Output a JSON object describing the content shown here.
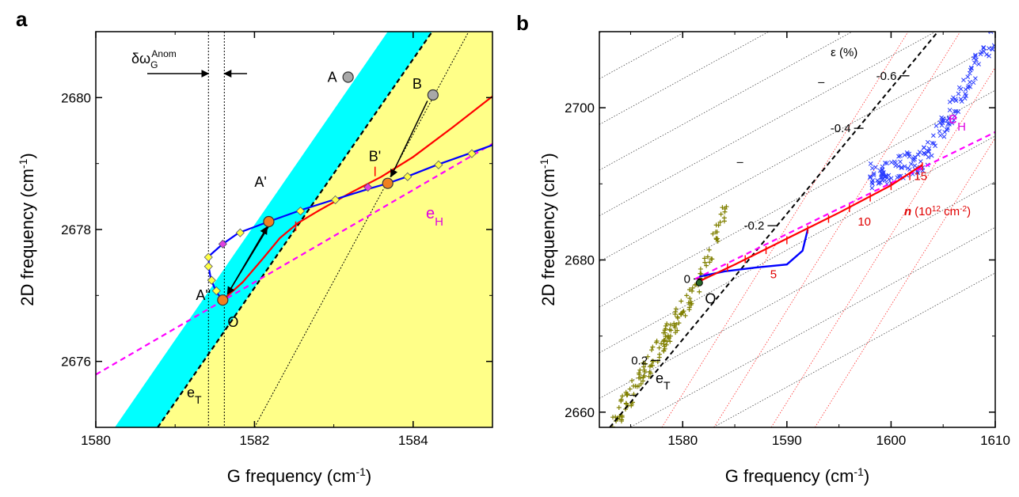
{
  "figure": {
    "panels": [
      "a",
      "b"
    ]
  },
  "chart_data": [
    {
      "panel": "a",
      "type": "line",
      "xlabel": "G frequency (cm",
      "xlabel_sup": "-1",
      "xlabel_end": ")",
      "ylabel": "2D frequency (cm",
      "ylabel_sup": "-1",
      "ylabel_end": ")",
      "xlim": [
        1580,
        1585
      ],
      "ylim": [
        2675,
        2681
      ],
      "xticks": [
        1580,
        1582,
        1584
      ],
      "yticks": [
        2676,
        2678,
        2680
      ],
      "colors": {
        "cyan": "#00ffff",
        "yellow": "#ffff88",
        "blue": "#0000ff",
        "red": "#ff0000",
        "magenta": "#ff00ff",
        "marker_yellow": "#ffff44",
        "marker_gray": "#a8a8a8",
        "marker_orange": "#f08020"
      },
      "cyan_band": {
        "left_edge": [
          [
            1580.24,
            2675
          ],
          [
            1583.68,
            2681
          ]
        ],
        "right_edge": [
          [
            1580.78,
            2675
          ],
          [
            1584.24,
            2681
          ]
        ]
      },
      "e_T_line": [
        [
          1580.78,
          2675
        ],
        [
          1584.24,
          2681
        ]
      ],
      "e_H_line": [
        [
          1580,
          2675.8
        ],
        [
          1585,
          2679.3
        ]
      ],
      "strain_line_through_B": [
        [
          1582.0,
          2675
        ],
        [
          1584.7,
          2681
        ]
      ],
      "anomaly_lines_x": [
        1581.42,
        1581.62
      ],
      "blue_curve": [
        [
          1581.6,
          2676.93
        ],
        [
          1581.52,
          2677.05
        ],
        [
          1581.45,
          2677.25
        ],
        [
          1581.42,
          2677.45
        ],
        [
          1581.43,
          2677.6
        ],
        [
          1581.6,
          2677.78
        ],
        [
          1581.8,
          2677.95
        ],
        [
          1582.18,
          2678.12
        ],
        [
          1582.6,
          2678.3
        ],
        [
          1583.05,
          2678.47
        ],
        [
          1583.45,
          2678.62
        ],
        [
          1583.68,
          2678.7
        ],
        [
          1583.92,
          2678.8
        ],
        [
          1584.3,
          2678.98
        ],
        [
          1584.7,
          2679.15
        ],
        [
          1585,
          2679.28
        ]
      ],
      "blue_markers": [
        [
          1581.42,
          2677.58
        ],
        [
          1581.42,
          2677.44
        ],
        [
          1581.46,
          2677.23
        ],
        [
          1581.52,
          2677.07
        ],
        [
          1581.82,
          2677.95
        ],
        [
          1582.58,
          2678.28
        ],
        [
          1583.02,
          2678.45
        ],
        [
          1583.93,
          2678.8
        ],
        [
          1584.32,
          2678.98
        ],
        [
          1584.74,
          2679.15
        ]
      ],
      "magenta_markers": [
        [
          1581.6,
          2677.78
        ],
        [
          1583.43,
          2678.64
        ]
      ],
      "red_curve": [
        [
          1581.6,
          2676.93
        ],
        [
          1581.85,
          2677.2
        ],
        [
          1582.1,
          2677.55
        ],
        [
          1582.32,
          2677.87
        ],
        [
          1582.55,
          2678.1
        ],
        [
          1582.8,
          2678.28
        ],
        [
          1583.2,
          2678.55
        ],
        [
          1583.6,
          2678.8
        ],
        [
          1584.0,
          2679.1
        ],
        [
          1584.5,
          2679.55
        ],
        [
          1585,
          2680.02
        ]
      ],
      "red_ticks": [
        [
          1582.52,
          2678.05
        ],
        [
          1583.52,
          2678.88
        ]
      ],
      "points": [
        {
          "label": "A",
          "x": 1583.18,
          "y": 2680.31,
          "kind": "gray"
        },
        {
          "label": "B",
          "x": 1584.25,
          "y": 2680.04,
          "kind": "gray"
        },
        {
          "label": "A'",
          "x": 1582.18,
          "y": 2678.12,
          "kind": "orange"
        },
        {
          "label": "B'",
          "x": 1583.68,
          "y": 2678.7,
          "kind": "orange"
        },
        {
          "label": "O",
          "x": 1581.6,
          "y": 2676.93,
          "kind": "orange"
        }
      ],
      "arrows": [
        {
          "from": [
            1584.18,
            2679.95
          ],
          "to": [
            1583.72,
            2678.8
          ]
        },
        {
          "from": [
            1582.18,
            2678.05
          ],
          "to": [
            1581.66,
            2677.02
          ]
        },
        {
          "from": [
            1581.66,
            2677.02
          ],
          "to": [
            1582.16,
            2678.04
          ]
        }
      ],
      "labels": {
        "A": "A",
        "B": "B",
        "A_prime": "A'",
        "B_prime": "B'",
        "A_dprime": "A''",
        "O": "O",
        "eT": "e",
        "eT_sub": "T",
        "eH": "e",
        "eH_sub": "H",
        "delta": "δω",
        "delta_sub": "G",
        "delta_sup": "Anom"
      }
    },
    {
      "panel": "b",
      "type": "scatter",
      "xlabel": "G frequency (cm",
      "xlabel_sup": "-1",
      "xlabel_end": ")",
      "ylabel": "2D frequency (cm",
      "ylabel_sup": "-1",
      "ylabel_end": ")",
      "xlim": [
        1572,
        1610
      ],
      "ylim": [
        2658,
        2710
      ],
      "xticks": [
        1580,
        1590,
        1600,
        1610
      ],
      "yticks": [
        2660,
        2680,
        2700
      ],
      "strain_axis_title": "ε (%)",
      "strain_line": [
        [
          1573,
          2658
        ],
        [
          1604.5,
          2710
        ]
      ],
      "strain_ticks": [
        {
          "label": "-0.6",
          "x": 1601.3,
          "y": 2704.2
        },
        {
          "label": "-0.4",
          "x": 1596.9,
          "y": 2697.3
        },
        {
          "label": "-0.2",
          "x": 1588.6,
          "y": 2684.5
        },
        {
          "label": "0",
          "x": 1581.5,
          "y": 2677.5
        },
        {
          "label": "0.2",
          "x": 1577.4,
          "y": 2666.8
        }
      ],
      "strain_minor_ticks": [
        [
          1593.3,
          2703.3
        ],
        [
          1585.5,
          2692.8
        ],
        [
          1575.2,
          2662.2
        ]
      ],
      "doping_slope": 0.75,
      "doping_gridline_offsets": [
        -20,
        -14,
        -8,
        -2,
        4,
        10,
        16,
        22,
        28,
        34,
        40,
        46
      ],
      "strain_gridline_x_at_bottom": [
        1578,
        1583,
        1588.5,
        1592.7
      ],
      "strain_slope": 2.2,
      "e_H_line": [
        [
          1581.2,
          2677.5
        ],
        [
          1610,
          2696.8
        ]
      ],
      "red_curve": [
        [
          1581.6,
          2677.2
        ],
        [
          1585,
          2679.4
        ],
        [
          1590,
          2682.8
        ],
        [
          1595,
          2686.2
        ],
        [
          1600,
          2689.8
        ],
        [
          1603,
          2692.5
        ]
      ],
      "red_ticks": [
        [
          1584.3,
          2679.0
        ],
        [
          1586,
          2680.1
        ],
        [
          1588,
          2681.3
        ],
        [
          1590,
          2682.6
        ],
        [
          1592,
          2684.0
        ],
        [
          1594,
          2685.4
        ],
        [
          1596,
          2686.8
        ],
        [
          1598,
          2688.2
        ],
        [
          1600,
          2689.7
        ],
        [
          1601.8,
          2691.0
        ],
        [
          1603,
          2692.3
        ]
      ],
      "blue_curve": [
        [
          1581.6,
          2677.8
        ],
        [
          1584,
          2678.5
        ],
        [
          1587,
          2679.0
        ],
        [
          1590,
          2679.4
        ],
        [
          1591.5,
          2681.2
        ],
        [
          1592,
          2684.0
        ]
      ],
      "doping_labels": [
        {
          "label": "5",
          "x": 1588.4,
          "y": 2677.6
        },
        {
          "label": "10",
          "x": 1596.8,
          "y": 2684.5
        },
        {
          "label": "15",
          "x": 1602.2,
          "y": 2690.5
        }
      ],
      "doping_axis_label": "n",
      "doping_axis_units": "(10",
      "doping_axis_sup1": "12",
      "doping_axis_mid": " cm",
      "doping_axis_sup2": "-2",
      "doping_axis_end": ")",
      "olive_series": {
        "name": "",
        "color": "#808000",
        "x_range": [
          1573.2,
          1584.5
        ],
        "trend": [
          [
            1573.2,
            2658.3
          ],
          [
            1581.6,
            2677.0
          ],
          [
            1584.5,
            2688.0
          ]
        ]
      },
      "blue_series": {
        "name": "",
        "color": "#2a3cff",
        "x_range": [
          1598,
          1610
        ],
        "trend": [
          [
            1598,
            2691.0
          ],
          [
            1603,
            2693.0
          ],
          [
            1606,
            2700.0
          ],
          [
            1609.8,
            2709.5
          ]
        ]
      },
      "points": [
        {
          "label": "O",
          "x": 1581.6,
          "y": 2677.0
        }
      ],
      "labels": {
        "eT": "e",
        "eT_sub": "T",
        "eH": "e",
        "eH_sub": "H",
        "O": "O"
      }
    }
  ]
}
